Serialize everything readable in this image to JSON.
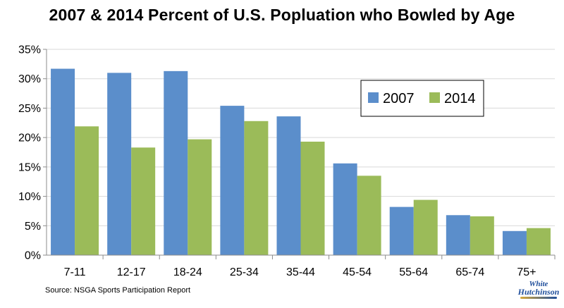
{
  "chart_data": {
    "type": "bar",
    "title": "2007 & 2014 Percent of U.S. Popluation who Bowled by Age",
    "categories": [
      "7-11",
      "12-17",
      "18-24",
      "25-34",
      "35-44",
      "45-54",
      "55-64",
      "65-74",
      "75+"
    ],
    "series": [
      {
        "name": "2007",
        "color": "#5b8ecb",
        "values": [
          31.7,
          31.0,
          31.3,
          25.4,
          23.6,
          15.6,
          8.2,
          6.8,
          4.1
        ]
      },
      {
        "name": "2014",
        "color": "#9bbb59",
        "values": [
          21.9,
          18.3,
          19.7,
          22.8,
          19.3,
          13.5,
          9.4,
          6.6,
          4.6
        ]
      }
    ],
    "y_ticks": [
      "0%",
      "5%",
      "10%",
      "15%",
      "20%",
      "25%",
      "30%",
      "35%"
    ],
    "ylim": [
      0,
      35
    ],
    "y_unit": "percent",
    "grid": true,
    "legend_position": "right-upper"
  },
  "source_text": "Source: NSGA Sports Participation Report",
  "logo": {
    "line1": "White",
    "line2": "Hutchinson"
  }
}
